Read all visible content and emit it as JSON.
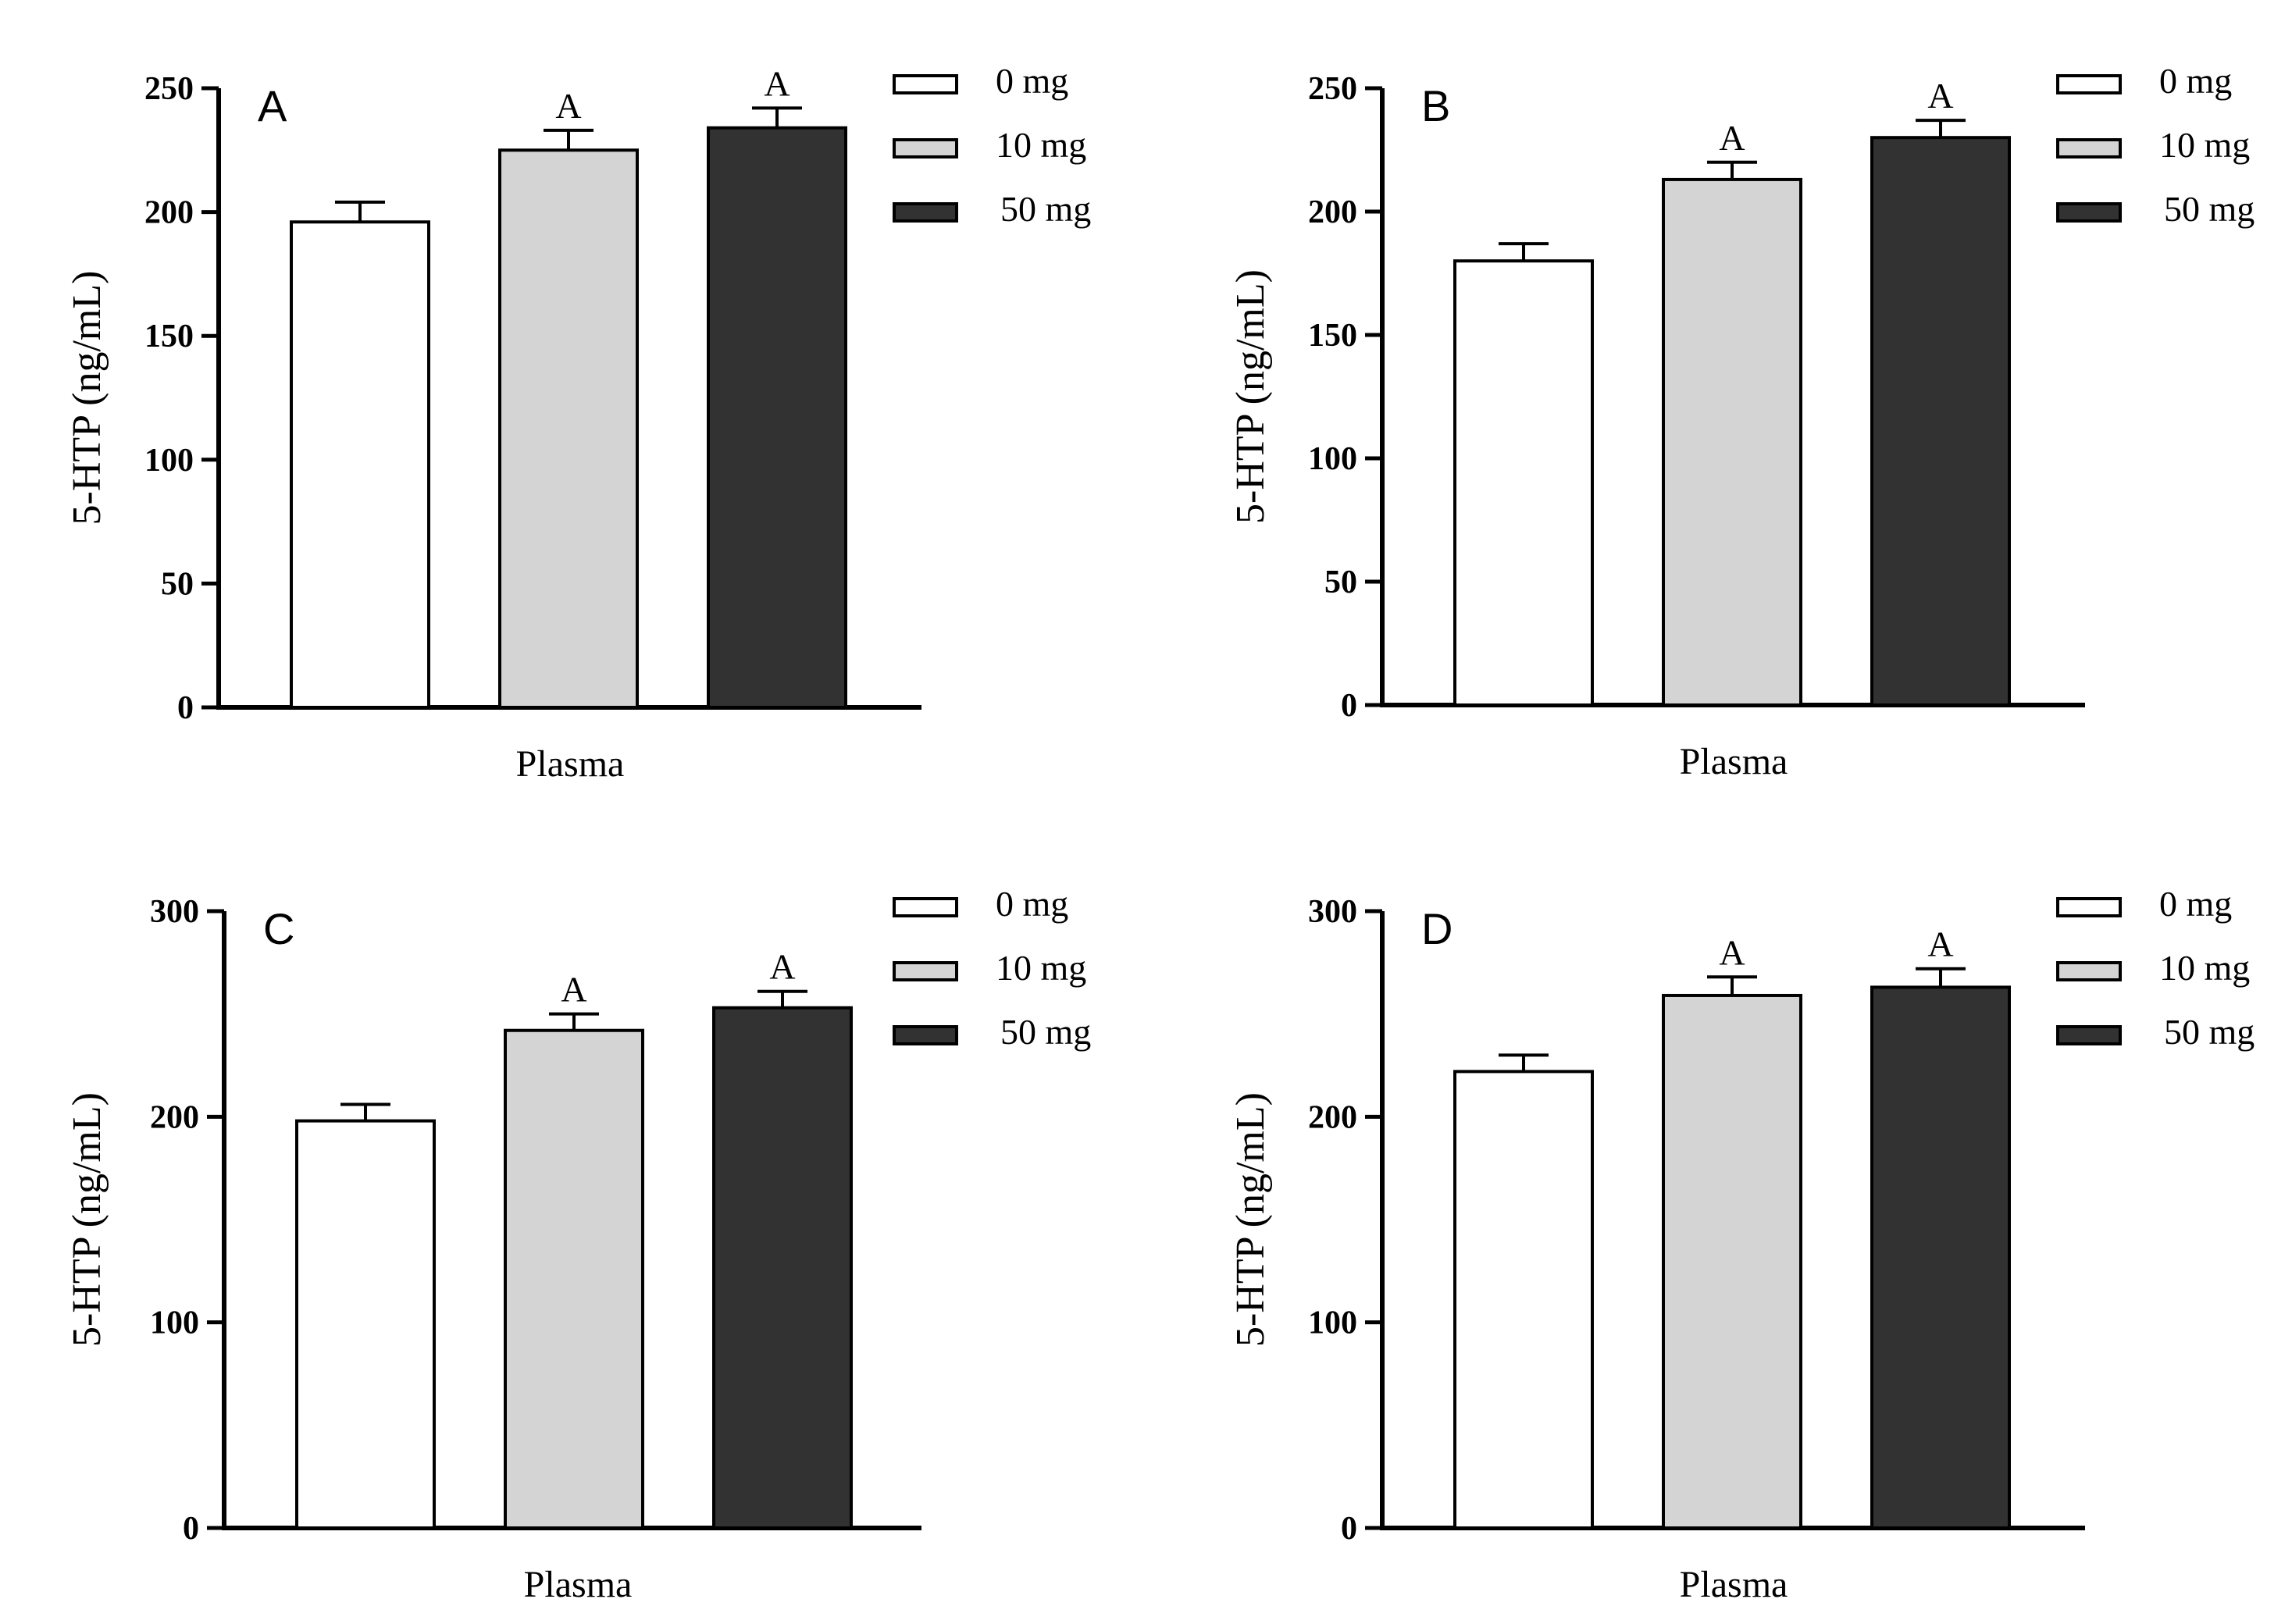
{
  "colors": {
    "0 mg": "#ffffff",
    "10 mg": "#d4d4d4",
    "50 mg": "#323232"
  },
  "chart_data": [
    {
      "type": "bar",
      "panel_letter": "A",
      "categories": [
        "Plasma"
      ],
      "series": [
        {
          "name": "0 mg",
          "values": [
            196
          ],
          "error": [
            8
          ],
          "sig": ""
        },
        {
          "name": "10 mg",
          "values": [
            225
          ],
          "error": [
            8
          ],
          "sig": "A"
        },
        {
          "name": "50 mg",
          "values": [
            234
          ],
          "error": [
            8
          ],
          "sig": "A"
        }
      ],
      "xlabel": "Plasma",
      "ylabel": "5-HTP (ng/mL)",
      "ylim": [
        0,
        250
      ],
      "yticks": [
        0,
        50,
        100,
        150,
        200,
        250
      ],
      "legend": [
        "0 mg",
        "10 mg",
        "50 mg"
      ],
      "legend_position": "top-right"
    },
    {
      "type": "bar",
      "panel_letter": "B",
      "categories": [
        "Plasma"
      ],
      "series": [
        {
          "name": "0 mg",
          "values": [
            180
          ],
          "error": [
            7
          ],
          "sig": ""
        },
        {
          "name": "10 mg",
          "values": [
            213
          ],
          "error": [
            7
          ],
          "sig": "A"
        },
        {
          "name": "50 mg",
          "values": [
            230
          ],
          "error": [
            7
          ],
          "sig": "A"
        }
      ],
      "xlabel": "Plasma",
      "ylabel": "5-HTP (ng/mL)",
      "ylim": [
        0,
        250
      ],
      "yticks": [
        0,
        50,
        100,
        150,
        200,
        250
      ],
      "legend": [
        "0 mg",
        "10 mg",
        "50 mg"
      ],
      "legend_position": "top-right"
    },
    {
      "type": "bar",
      "panel_letter": "C",
      "categories": [
        "Plasma"
      ],
      "series": [
        {
          "name": "0 mg",
          "values": [
            198
          ],
          "error": [
            8
          ],
          "sig": ""
        },
        {
          "name": "10 mg",
          "values": [
            242
          ],
          "error": [
            8
          ],
          "sig": "A"
        },
        {
          "name": "50 mg",
          "values": [
            253
          ],
          "error": [
            8
          ],
          "sig": "A"
        }
      ],
      "xlabel": "Plasma",
      "ylabel": "5-HTP (ng/mL)",
      "ylim": [
        0,
        300
      ],
      "yticks": [
        0,
        100,
        200,
        300
      ],
      "legend": [
        "0 mg",
        "10 mg",
        "50 mg"
      ],
      "legend_position": "top-right"
    },
    {
      "type": "bar",
      "panel_letter": "D",
      "categories": [
        "Plasma"
      ],
      "series": [
        {
          "name": "0 mg",
          "values": [
            222
          ],
          "error": [
            8
          ],
          "sig": ""
        },
        {
          "name": "10 mg",
          "values": [
            259
          ],
          "error": [
            9
          ],
          "sig": "A"
        },
        {
          "name": "50 mg",
          "values": [
            263
          ],
          "error": [
            9
          ],
          "sig": "A"
        }
      ],
      "xlabel": "Plasma",
      "ylabel": "5-HTP (ng/mL)",
      "ylim": [
        0,
        300
      ],
      "yticks": [
        0,
        100,
        200,
        300
      ],
      "legend": [
        "0 mg",
        "10 mg",
        "50 mg"
      ],
      "legend_position": "top-right"
    }
  ]
}
